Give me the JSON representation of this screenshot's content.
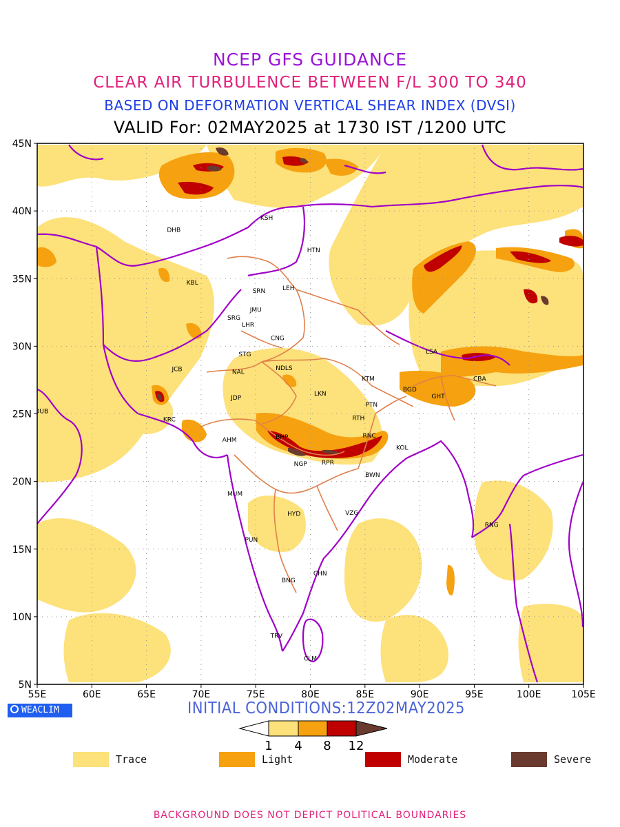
{
  "titles": {
    "line1": "NCEP GFS GUIDANCE",
    "line2": "CLEAR AIR TURBULENCE BETWEEN F/L 300 TO 340",
    "line3": "BASED ON DEFORMATION VERTICAL SHEAR INDEX (DVSI)",
    "line4": "VALID For: 02MAY2025 at 1730 IST /1200 UTC"
  },
  "axes": {
    "lat_labels": [
      "45N",
      "40N",
      "35N",
      "30N",
      "25N",
      "20N",
      "15N",
      "10N",
      "5N"
    ],
    "lon_labels": [
      "55E",
      "60E",
      "65E",
      "70E",
      "75E",
      "80E",
      "85E",
      "90E",
      "95E",
      "100E",
      "105E"
    ],
    "lon_range": [
      55,
      105
    ],
    "lat_range": [
      5,
      45
    ],
    "grid": "dotted"
  },
  "colors": {
    "trace": "#fde17a",
    "light": "#f6a10f",
    "moderate": "#c00000",
    "severe": "#6a3a2e",
    "boundary": "#a000c8",
    "state_boundary": "#e0804a"
  },
  "cities": [
    {
      "code": "KSH",
      "lon": 76.0,
      "lat": 39.5
    },
    {
      "code": "DHB",
      "lon": 67.5,
      "lat": 38.6
    },
    {
      "code": "HTN",
      "lon": 80.3,
      "lat": 37.1
    },
    {
      "code": "KBL",
      "lon": 69.2,
      "lat": 34.7
    },
    {
      "code": "SRN",
      "lon": 75.3,
      "lat": 34.1
    },
    {
      "code": "LEH",
      "lon": 78.0,
      "lat": 34.3
    },
    {
      "code": "JMU",
      "lon": 75.0,
      "lat": 32.7
    },
    {
      "code": "SRG",
      "lon": 73.0,
      "lat": 32.1
    },
    {
      "code": "LHR",
      "lon": 74.3,
      "lat": 31.6
    },
    {
      "code": "CNG",
      "lon": 77.0,
      "lat": 30.6
    },
    {
      "code": "STG",
      "lon": 74.0,
      "lat": 29.4
    },
    {
      "code": "JCB",
      "lon": 67.8,
      "lat": 28.3
    },
    {
      "code": "NAL",
      "lon": 73.4,
      "lat": 28.1
    },
    {
      "code": "NDLS",
      "lon": 77.6,
      "lat": 28.4
    },
    {
      "code": "LSA",
      "lon": 91.1,
      "lat": 29.6
    },
    {
      "code": "KTM",
      "lon": 85.3,
      "lat": 27.6
    },
    {
      "code": "CBA",
      "lon": 95.5,
      "lat": 27.6
    },
    {
      "code": "JDP",
      "lon": 73.2,
      "lat": 26.2
    },
    {
      "code": "LKN",
      "lon": 80.9,
      "lat": 26.5
    },
    {
      "code": "BGD",
      "lon": 89.1,
      "lat": 26.8
    },
    {
      "code": "GHT",
      "lon": 91.7,
      "lat": 26.3
    },
    {
      "code": "DUB",
      "lon": 55.4,
      "lat": 25.2
    },
    {
      "code": "PTN",
      "lon": 85.6,
      "lat": 25.7
    },
    {
      "code": "RTH",
      "lon": 84.4,
      "lat": 24.7
    },
    {
      "code": "KRC",
      "lon": 67.1,
      "lat": 24.6
    },
    {
      "code": "AHM",
      "lon": 72.6,
      "lat": 23.1
    },
    {
      "code": "BHP",
      "lon": 77.4,
      "lat": 23.3
    },
    {
      "code": "RNC",
      "lon": 85.4,
      "lat": 23.4
    },
    {
      "code": "KOL",
      "lon": 88.4,
      "lat": 22.5
    },
    {
      "code": "NGP",
      "lon": 79.1,
      "lat": 21.3
    },
    {
      "code": "RPR",
      "lon": 81.6,
      "lat": 21.4
    },
    {
      "code": "BWN",
      "lon": 85.7,
      "lat": 20.5
    },
    {
      "code": "MUM",
      "lon": 73.1,
      "lat": 19.1
    },
    {
      "code": "HYD",
      "lon": 78.5,
      "lat": 17.6
    },
    {
      "code": "VZG",
      "lon": 83.8,
      "lat": 17.7
    },
    {
      "code": "RNG",
      "lon": 96.6,
      "lat": 16.8
    },
    {
      "code": "PUN",
      "lon": 74.6,
      "lat": 15.7
    },
    {
      "code": "CHN",
      "lon": 80.9,
      "lat": 13.2
    },
    {
      "code": "BNG",
      "lon": 78.0,
      "lat": 12.7
    },
    {
      "code": "TRV",
      "lon": 76.9,
      "lat": 8.6
    },
    {
      "code": "CLM",
      "lon": 80.0,
      "lat": 6.9
    }
  ],
  "brand": "WEACLIM",
  "initial_conditions": "INITIAL CONDITIONS:12Z02MAY2025",
  "colorbar": {
    "ticks": [
      "1",
      "4",
      "8",
      "12"
    ]
  },
  "legend": [
    {
      "label": "Trace",
      "color": "#fde17a"
    },
    {
      "label": "Light",
      "color": "#f6a10f"
    },
    {
      "label": "Moderate",
      "color": "#c00000"
    },
    {
      "label": "Severe",
      "color": "#6a3a2e"
    }
  ],
  "footer": "BACKGROUND DOES NOT DEPICT POLITICAL BOUNDARIES"
}
